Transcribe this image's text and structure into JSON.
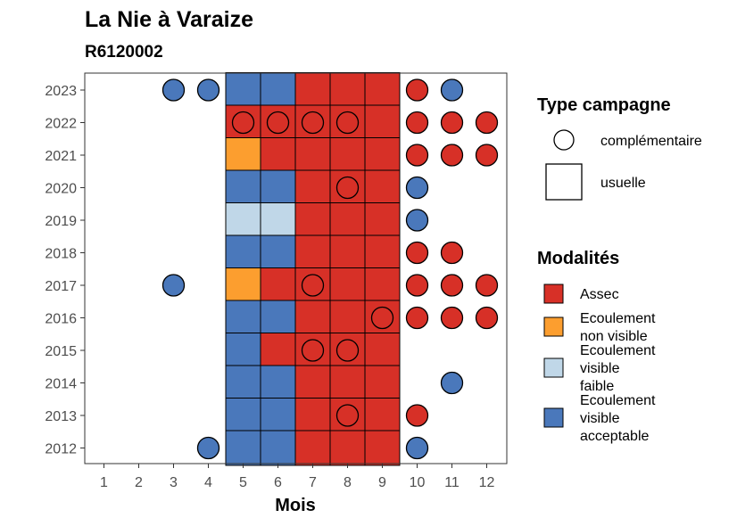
{
  "chart_data": {
    "type": "heatmap",
    "title": "La Nie à Varaize",
    "subtitle": "R6120002",
    "xlabel": "Mois",
    "ylabel": "",
    "x_ticks": [
      1,
      2,
      3,
      4,
      5,
      6,
      7,
      8,
      9,
      10,
      11,
      12
    ],
    "y_ticks": [
      2012,
      2013,
      2014,
      2015,
      2016,
      2017,
      2018,
      2019,
      2020,
      2021,
      2022,
      2023
    ],
    "colors": {
      "Assec": "#d73027",
      "Ecoulement non visible": "#fc9e2f",
      "Ecoulement visible faible": "#c0d7e8",
      "Ecoulement visible acceptable": "#4a78bb"
    },
    "observations": [
      {
        "year": 2023,
        "month": 3,
        "type": "complémentaire",
        "modalite": "Ecoulement visible acceptable"
      },
      {
        "year": 2023,
        "month": 4,
        "type": "complémentaire",
        "modalite": "Ecoulement visible acceptable"
      },
      {
        "year": 2023,
        "month": 5,
        "type": "usuelle",
        "modalite": "Ecoulement visible acceptable"
      },
      {
        "year": 2023,
        "month": 6,
        "type": "usuelle",
        "modalite": "Ecoulement visible acceptable"
      },
      {
        "year": 2023,
        "month": 7,
        "type": "usuelle",
        "modalite": "Assec"
      },
      {
        "year": 2023,
        "month": 8,
        "type": "usuelle",
        "modalite": "Assec"
      },
      {
        "year": 2023,
        "month": 9,
        "type": "usuelle",
        "modalite": "Assec"
      },
      {
        "year": 2023,
        "month": 10,
        "type": "complémentaire",
        "modalite": "Assec"
      },
      {
        "year": 2023,
        "month": 11,
        "type": "complémentaire",
        "modalite": "Ecoulement visible acceptable"
      },
      {
        "year": 2022,
        "month": 5,
        "type": "usuelle",
        "modalite": "Assec"
      },
      {
        "year": 2022,
        "month": 5,
        "type": "complémentaire",
        "modalite": "Assec"
      },
      {
        "year": 2022,
        "month": 6,
        "type": "usuelle",
        "modalite": "Assec"
      },
      {
        "year": 2022,
        "month": 6,
        "type": "complémentaire",
        "modalite": "Assec"
      },
      {
        "year": 2022,
        "month": 7,
        "type": "usuelle",
        "modalite": "Assec"
      },
      {
        "year": 2022,
        "month": 7,
        "type": "complémentaire",
        "modalite": "Assec"
      },
      {
        "year": 2022,
        "month": 8,
        "type": "usuelle",
        "modalite": "Assec"
      },
      {
        "year": 2022,
        "month": 8,
        "type": "complémentaire",
        "modalite": "Assec"
      },
      {
        "year": 2022,
        "month": 9,
        "type": "usuelle",
        "modalite": "Assec"
      },
      {
        "year": 2022,
        "month": 10,
        "type": "complémentaire",
        "modalite": "Assec"
      },
      {
        "year": 2022,
        "month": 11,
        "type": "complémentaire",
        "modalite": "Assec"
      },
      {
        "year": 2022,
        "month": 12,
        "type": "complémentaire",
        "modalite": "Assec"
      },
      {
        "year": 2021,
        "month": 5,
        "type": "usuelle",
        "modalite": "Ecoulement non visible"
      },
      {
        "year": 2021,
        "month": 6,
        "type": "usuelle",
        "modalite": "Assec"
      },
      {
        "year": 2021,
        "month": 7,
        "type": "usuelle",
        "modalite": "Assec"
      },
      {
        "year": 2021,
        "month": 8,
        "type": "usuelle",
        "modalite": "Assec"
      },
      {
        "year": 2021,
        "month": 9,
        "type": "usuelle",
        "modalite": "Assec"
      },
      {
        "year": 2021,
        "month": 10,
        "type": "complémentaire",
        "modalite": "Assec"
      },
      {
        "year": 2021,
        "month": 11,
        "type": "complémentaire",
        "modalite": "Assec"
      },
      {
        "year": 2021,
        "month": 12,
        "type": "complémentaire",
        "modalite": "Assec"
      },
      {
        "year": 2020,
        "month": 5,
        "type": "usuelle",
        "modalite": "Ecoulement visible acceptable"
      },
      {
        "year": 2020,
        "month": 6,
        "type": "usuelle",
        "modalite": "Ecoulement visible acceptable"
      },
      {
        "year": 2020,
        "month": 7,
        "type": "usuelle",
        "modalite": "Assec"
      },
      {
        "year": 2020,
        "month": 8,
        "type": "usuelle",
        "modalite": "Assec"
      },
      {
        "year": 2020,
        "month": 8,
        "type": "complémentaire",
        "modalite": "Assec"
      },
      {
        "year": 2020,
        "month": 9,
        "type": "usuelle",
        "modalite": "Assec"
      },
      {
        "year": 2020,
        "month": 10,
        "type": "complémentaire",
        "modalite": "Ecoulement visible acceptable"
      },
      {
        "year": 2019,
        "month": 5,
        "type": "usuelle",
        "modalite": "Ecoulement visible faible"
      },
      {
        "year": 2019,
        "month": 6,
        "type": "usuelle",
        "modalite": "Ecoulement visible faible"
      },
      {
        "year": 2019,
        "month": 7,
        "type": "usuelle",
        "modalite": "Assec"
      },
      {
        "year": 2019,
        "month": 8,
        "type": "usuelle",
        "modalite": "Assec"
      },
      {
        "year": 2019,
        "month": 9,
        "type": "usuelle",
        "modalite": "Assec"
      },
      {
        "year": 2019,
        "month": 10,
        "type": "complémentaire",
        "modalite": "Ecoulement visible acceptable"
      },
      {
        "year": 2018,
        "month": 5,
        "type": "usuelle",
        "modalite": "Ecoulement visible acceptable"
      },
      {
        "year": 2018,
        "month": 6,
        "type": "usuelle",
        "modalite": "Ecoulement visible acceptable"
      },
      {
        "year": 2018,
        "month": 7,
        "type": "usuelle",
        "modalite": "Assec"
      },
      {
        "year": 2018,
        "month": 8,
        "type": "usuelle",
        "modalite": "Assec"
      },
      {
        "year": 2018,
        "month": 9,
        "type": "usuelle",
        "modalite": "Assec"
      },
      {
        "year": 2018,
        "month": 10,
        "type": "complémentaire",
        "modalite": "Assec"
      },
      {
        "year": 2018,
        "month": 11,
        "type": "complémentaire",
        "modalite": "Assec"
      },
      {
        "year": 2017,
        "month": 3,
        "type": "complémentaire",
        "modalite": "Ecoulement visible acceptable"
      },
      {
        "year": 2017,
        "month": 5,
        "type": "usuelle",
        "modalite": "Ecoulement non visible"
      },
      {
        "year": 2017,
        "month": 6,
        "type": "usuelle",
        "modalite": "Assec"
      },
      {
        "year": 2017,
        "month": 7,
        "type": "usuelle",
        "modalite": "Assec"
      },
      {
        "year": 2017,
        "month": 7,
        "type": "complémentaire",
        "modalite": "Assec"
      },
      {
        "year": 2017,
        "month": 8,
        "type": "usuelle",
        "modalite": "Assec"
      },
      {
        "year": 2017,
        "month": 9,
        "type": "usuelle",
        "modalite": "Assec"
      },
      {
        "year": 2017,
        "month": 10,
        "type": "complémentaire",
        "modalite": "Assec"
      },
      {
        "year": 2017,
        "month": 11,
        "type": "complémentaire",
        "modalite": "Assec"
      },
      {
        "year": 2017,
        "month": 12,
        "type": "complémentaire",
        "modalite": "Assec"
      },
      {
        "year": 2016,
        "month": 5,
        "type": "usuelle",
        "modalite": "Ecoulement visible acceptable"
      },
      {
        "year": 2016,
        "month": 6,
        "type": "usuelle",
        "modalite": "Ecoulement visible acceptable"
      },
      {
        "year": 2016,
        "month": 7,
        "type": "usuelle",
        "modalite": "Assec"
      },
      {
        "year": 2016,
        "month": 8,
        "type": "usuelle",
        "modalite": "Assec"
      },
      {
        "year": 2016,
        "month": 9,
        "type": "usuelle",
        "modalite": "Assec"
      },
      {
        "year": 2016,
        "month": 9,
        "type": "complémentaire",
        "modalite": "Assec"
      },
      {
        "year": 2016,
        "month": 10,
        "type": "complémentaire",
        "modalite": "Assec"
      },
      {
        "year": 2016,
        "month": 11,
        "type": "complémentaire",
        "modalite": "Assec"
      },
      {
        "year": 2016,
        "month": 12,
        "type": "complémentaire",
        "modalite": "Assec"
      },
      {
        "year": 2015,
        "month": 5,
        "type": "usuelle",
        "modalite": "Ecoulement visible acceptable"
      },
      {
        "year": 2015,
        "month": 6,
        "type": "usuelle",
        "modalite": "Assec"
      },
      {
        "year": 2015,
        "month": 7,
        "type": "usuelle",
        "modalite": "Assec"
      },
      {
        "year": 2015,
        "month": 7,
        "type": "complémentaire",
        "modalite": "Assec"
      },
      {
        "year": 2015,
        "month": 8,
        "type": "usuelle",
        "modalite": "Assec"
      },
      {
        "year": 2015,
        "month": 8,
        "type": "complémentaire",
        "modalite": "Assec"
      },
      {
        "year": 2015,
        "month": 9,
        "type": "usuelle",
        "modalite": "Assec"
      },
      {
        "year": 2014,
        "month": 5,
        "type": "usuelle",
        "modalite": "Ecoulement visible acceptable"
      },
      {
        "year": 2014,
        "month": 6,
        "type": "usuelle",
        "modalite": "Ecoulement visible acceptable"
      },
      {
        "year": 2014,
        "month": 7,
        "type": "usuelle",
        "modalite": "Assec"
      },
      {
        "year": 2014,
        "month": 8,
        "type": "usuelle",
        "modalite": "Assec"
      },
      {
        "year": 2014,
        "month": 9,
        "type": "usuelle",
        "modalite": "Assec"
      },
      {
        "year": 2014,
        "month": 11,
        "type": "complémentaire",
        "modalite": "Ecoulement visible acceptable"
      },
      {
        "year": 2013,
        "month": 5,
        "type": "usuelle",
        "modalite": "Ecoulement visible acceptable"
      },
      {
        "year": 2013,
        "month": 6,
        "type": "usuelle",
        "modalite": "Ecoulement visible acceptable"
      },
      {
        "year": 2013,
        "month": 7,
        "type": "usuelle",
        "modalite": "Assec"
      },
      {
        "year": 2013,
        "month": 8,
        "type": "usuelle",
        "modalite": "Assec"
      },
      {
        "year": 2013,
        "month": 8,
        "type": "complémentaire",
        "modalite": "Assec"
      },
      {
        "year": 2013,
        "month": 9,
        "type": "usuelle",
        "modalite": "Assec"
      },
      {
        "year": 2013,
        "month": 10,
        "type": "complémentaire",
        "modalite": "Assec"
      },
      {
        "year": 2012,
        "month": 4,
        "type": "complémentaire",
        "modalite": "Ecoulement visible acceptable"
      },
      {
        "year": 2012,
        "month": 5,
        "type": "usuelle",
        "modalite": "Ecoulement visible acceptable"
      },
      {
        "year": 2012,
        "month": 6,
        "type": "usuelle",
        "modalite": "Ecoulement visible acceptable"
      },
      {
        "year": 2012,
        "month": 7,
        "type": "usuelle",
        "modalite": "Assec"
      },
      {
        "year": 2012,
        "month": 8,
        "type": "usuelle",
        "modalite": "Assec"
      },
      {
        "year": 2012,
        "month": 9,
        "type": "usuelle",
        "modalite": "Assec"
      },
      {
        "year": 2012,
        "month": 10,
        "type": "complémentaire",
        "modalite": "Ecoulement visible acceptable"
      }
    ],
    "legend": {
      "placement": "right",
      "type_title": "Type campagne",
      "type_items": [
        {
          "key": "complémentaire",
          "label": "complémentaire",
          "shape": "circle"
        },
        {
          "key": "usuelle",
          "label": "usuelle",
          "shape": "square"
        }
      ],
      "modalite_title": "Modalités",
      "modalite_items": [
        {
          "key": "Assec",
          "lines": [
            "Assec"
          ]
        },
        {
          "key": "Ecoulement non visible",
          "lines": [
            "Ecoulement",
            "non visible"
          ]
        },
        {
          "key": "Ecoulement visible faible",
          "lines": [
            "Ecoulement",
            "visible",
            "faible"
          ]
        },
        {
          "key": "Ecoulement visible acceptable",
          "lines": [
            "Ecoulement",
            "visible",
            "acceptable"
          ]
        }
      ]
    }
  }
}
